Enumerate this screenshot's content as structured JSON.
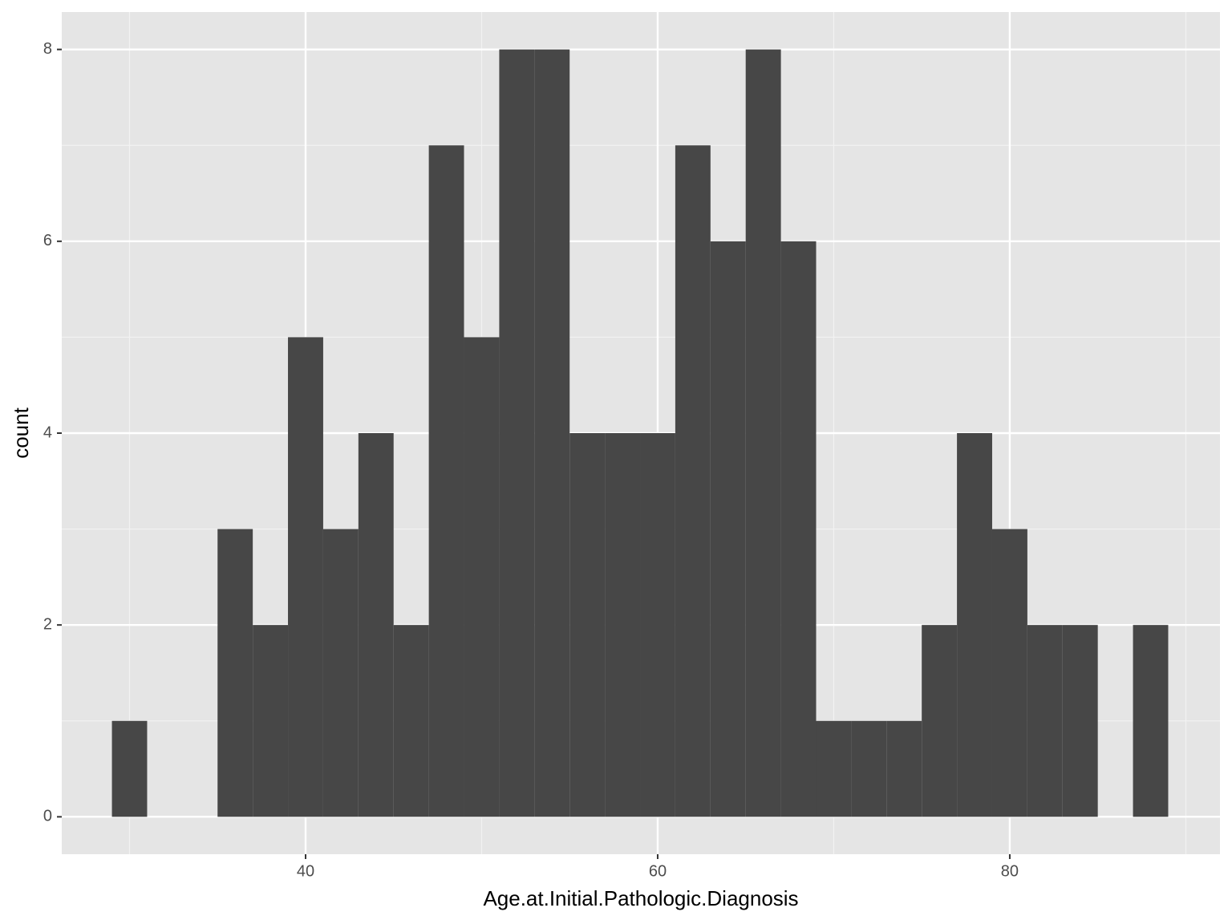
{
  "chart_data": {
    "type": "histogram",
    "x_label": "Age.at.Initial.Pathologic.Diagnosis",
    "y_label": "count",
    "bins": [
      29,
      31,
      33,
      35,
      37,
      39,
      41,
      43,
      45,
      47,
      49,
      51,
      53,
      55,
      57,
      59,
      61,
      63,
      65,
      67,
      69,
      71,
      73,
      75,
      77,
      79,
      81,
      83,
      85,
      87,
      89
    ],
    "counts": [
      1,
      0,
      0,
      3,
      2,
      5,
      3,
      4,
      2,
      7,
      5,
      8,
      8,
      4,
      4,
      4,
      7,
      6,
      8,
      6,
      1,
      1,
      1,
      2,
      4,
      3,
      2,
      2,
      0,
      2
    ],
    "color": "#474747",
    "xlim": [
      26.15,
      91.94
    ],
    "xticks": [
      40,
      60,
      80
    ],
    "ylim": [
      -0.39,
      8.39
    ],
    "yticks": [
      0,
      2,
      4,
      6,
      8
    ],
    "grid": true,
    "minor_grid": true
  }
}
